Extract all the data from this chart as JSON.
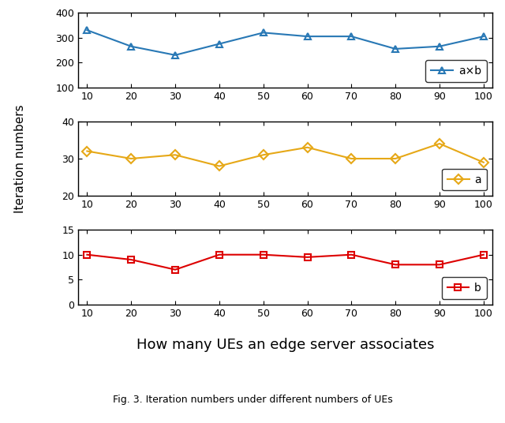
{
  "x": [
    10,
    20,
    30,
    40,
    50,
    60,
    70,
    80,
    90,
    100
  ],
  "axb_values": [
    330,
    265,
    230,
    275,
    320,
    305,
    305,
    255,
    265,
    305
  ],
  "a_values": [
    32,
    30,
    31,
    28,
    31,
    33,
    30,
    30,
    34,
    29
  ],
  "b_values": [
    10,
    9,
    7,
    10,
    10,
    9.5,
    10,
    8,
    8,
    10
  ],
  "axb_color": "#2878b5",
  "a_color": "#e6a817",
  "b_color": "#dd0000",
  "axb_ylim": [
    100,
    400
  ],
  "axb_yticks": [
    100,
    200,
    300,
    400
  ],
  "a_ylim": [
    20,
    40
  ],
  "a_yticks": [
    20,
    30,
    40
  ],
  "b_ylim": [
    0,
    15
  ],
  "b_yticks": [
    0,
    5,
    10,
    15
  ],
  "xlabel": "How many UEs an edge server associates",
  "ylabel": "Iteration numbers",
  "xticks": [
    10,
    20,
    30,
    40,
    50,
    60,
    70,
    80,
    90,
    100
  ],
  "caption": "Fig. 3. Iteration numbers under different numbers of UEs",
  "legend_axb": "a×b",
  "legend_a": "a",
  "legend_b": "b"
}
